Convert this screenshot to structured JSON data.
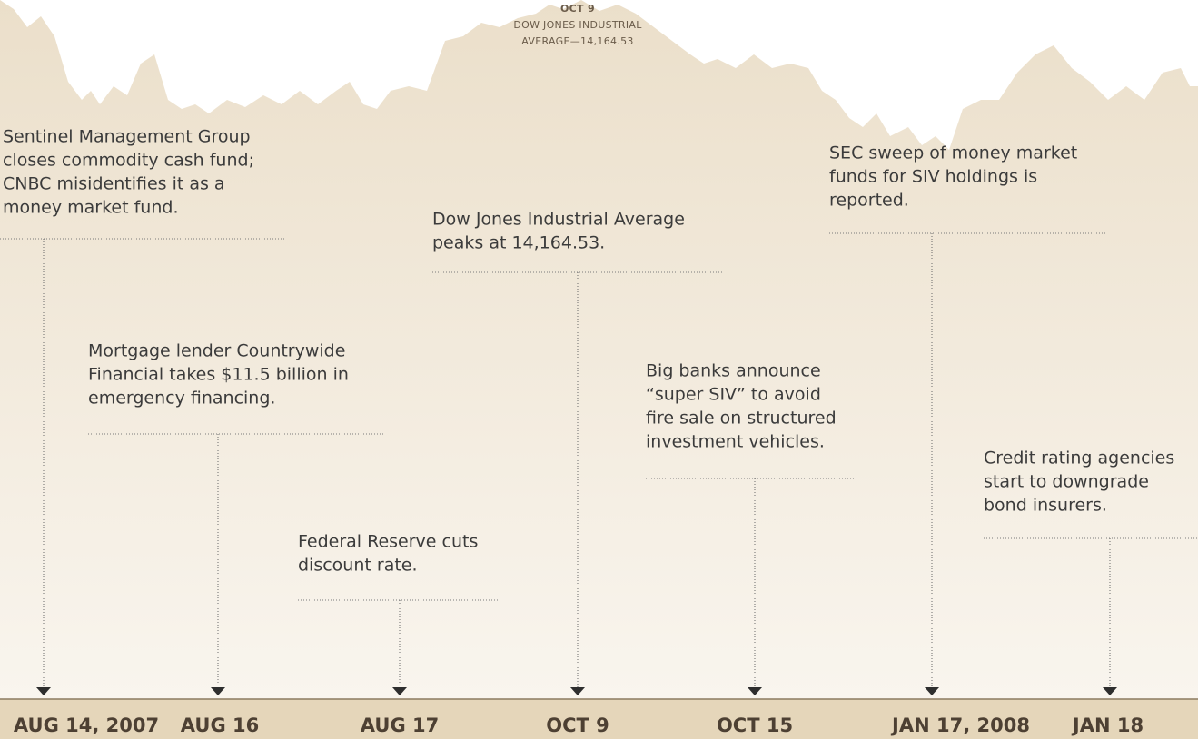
{
  "peak": {
    "date": "OCT 9",
    "lines": [
      "DOW JONES INDUSTRIAL",
      "AVERAGE—14,164.53"
    ]
  },
  "events": [
    {
      "lines": [
        "Sentinel Management Group",
        "closes commodity cash fund;",
        "CNBC misidentifies it as a",
        "money market fund."
      ],
      "date": "AUG 14, 2007"
    },
    {
      "lines": [
        "Mortgage lender Countrywide",
        "Financial takes $11.5 billion in",
        "emergency financing."
      ],
      "date": "AUG 16"
    },
    {
      "lines": [
        "Federal Reserve cuts",
        "discount rate."
      ],
      "date": "AUG 17"
    },
    {
      "lines": [
        "Dow Jones Industrial Average",
        "peaks at 14,164.53."
      ],
      "date": "OCT 9"
    },
    {
      "lines": [
        "Big banks announce",
        "“super SIV” to avoid",
        "fire sale on structured",
        "investment vehicles."
      ],
      "date": "OCT 15"
    },
    {
      "lines": [
        "SEC sweep of money market",
        "funds for SIV holdings is",
        "reported."
      ],
      "date": "JAN 17, 2008"
    },
    {
      "lines": [
        "Credit rating agencies",
        "start to downgrade",
        "bond insurers."
      ],
      "date": "JAN 18"
    }
  ]
}
